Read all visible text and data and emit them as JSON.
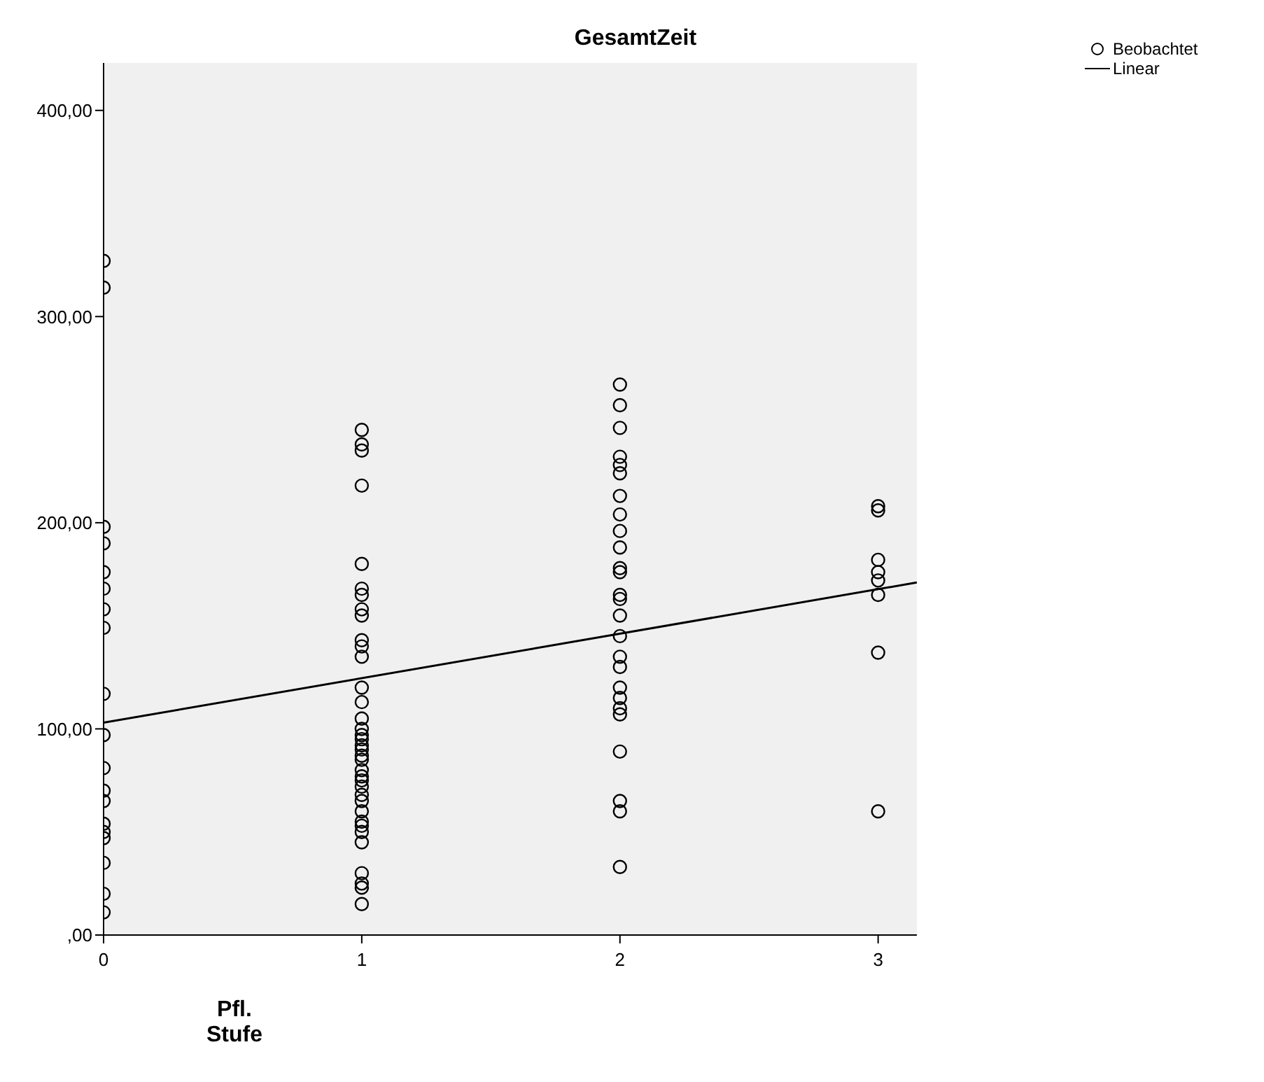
{
  "chart_data": {
    "type": "scatter",
    "title": "GesamtZeit",
    "xlabel": "Pfl.\nStufe",
    "xlim": [
      0,
      3.15
    ],
    "xticks": [
      0,
      1,
      2,
      3
    ],
    "ylim": [
      0,
      423
    ],
    "yticks": [
      {
        "value": 0,
        "label": ",00"
      },
      {
        "value": 100,
        "label": "100,00"
      },
      {
        "value": 200,
        "label": "200,00"
      },
      {
        "value": 300,
        "label": "300,00"
      },
      {
        "value": 400,
        "label": "400,00"
      }
    ],
    "grid": false,
    "legend": "top right",
    "series": [
      {
        "name": "Beobachtet",
        "type": "scatter",
        "marker": "circle",
        "color": "#000000",
        "x": [
          0,
          0,
          0,
          0,
          0,
          0,
          0,
          0,
          0,
          0,
          0,
          0,
          0,
          0,
          0,
          0,
          0,
          0,
          0,
          1,
          1,
          1,
          1,
          1,
          1,
          1,
          1,
          1,
          1,
          1,
          1,
          1,
          1,
          1,
          1,
          1,
          1,
          1,
          1,
          1,
          1,
          1,
          1,
          1,
          1,
          1,
          1,
          1,
          1,
          1,
          1,
          1,
          1,
          1,
          1,
          1,
          2,
          2,
          2,
          2,
          2,
          2,
          2,
          2,
          2,
          2,
          2,
          2,
          2,
          2,
          2,
          2,
          2,
          2,
          2,
          2,
          2,
          2,
          2,
          2,
          2,
          2,
          3,
          3,
          3,
          3,
          3,
          3,
          3,
          3
        ],
        "values": [
          327,
          314,
          198,
          190,
          176,
          168,
          158,
          149,
          117,
          97,
          81,
          70,
          65,
          54,
          50,
          47,
          35,
          20,
          11,
          245,
          238,
          235,
          218,
          180,
          168,
          165,
          158,
          155,
          143,
          140,
          135,
          120,
          113,
          105,
          100,
          97,
          95,
          92,
          90,
          87,
          85,
          80,
          77,
          75,
          72,
          68,
          65,
          60,
          55,
          53,
          50,
          45,
          30,
          25,
          23,
          15,
          267,
          257,
          246,
          232,
          228,
          224,
          213,
          204,
          196,
          188,
          178,
          176,
          165,
          163,
          155,
          145,
          135,
          130,
          120,
          115,
          110,
          107,
          89,
          65,
          60,
          33,
          208,
          206,
          182,
          176,
          172,
          165,
          137,
          60
        ]
      },
      {
        "name": "Linear",
        "type": "line",
        "marker": "none",
        "line_style": "solid",
        "color": "#000000",
        "x": [
          0,
          3.15
        ],
        "values": [
          103,
          171
        ]
      }
    ]
  }
}
